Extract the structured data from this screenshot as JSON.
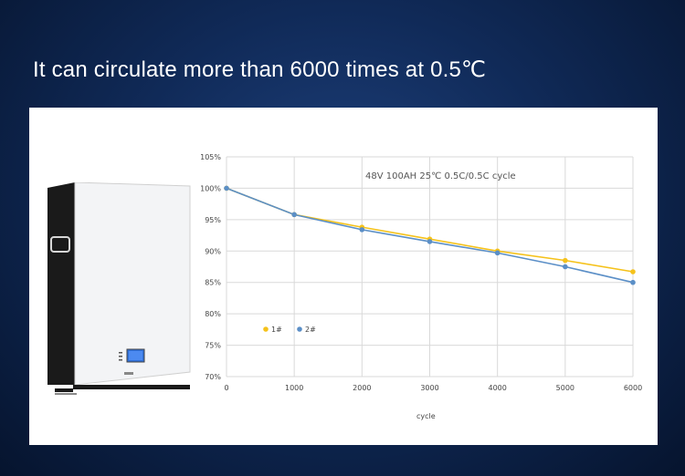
{
  "headline": "It can circulate more than 6000 times at 0.5℃",
  "product": {
    "icon": "wall-mounted-battery-icon",
    "colors": {
      "body": "#f3f4f6",
      "side": "#1a1a1a",
      "screen": "#2f6fd8"
    }
  },
  "chart_data": {
    "type": "line",
    "title": "48V 100AH 25℃ 0.5C/0.5C cycle",
    "xlabel": "cycle",
    "ylabel": "",
    "x": [
      0,
      1000,
      2000,
      3000,
      4000,
      5000,
      6000
    ],
    "xticks": [
      "0",
      "1000",
      "2000",
      "3000",
      "4000",
      "5000",
      "6000"
    ],
    "xlim": [
      0,
      6000
    ],
    "yticks": [
      "105%",
      "100%",
      "95%",
      "90%",
      "85%",
      "80%",
      "75%",
      "70%"
    ],
    "ylim": [
      70,
      105
    ],
    "grid": true,
    "legend_position": "left-middle",
    "series": [
      {
        "name": "1#",
        "color": "#f5c21b",
        "values": [
          100,
          95.8,
          93.8,
          91.9,
          90.0,
          88.5,
          86.7
        ]
      },
      {
        "name": "2#",
        "color": "#5b8fc7",
        "values": [
          100,
          95.8,
          93.4,
          91.5,
          89.7,
          87.5,
          85.0
        ]
      }
    ]
  }
}
